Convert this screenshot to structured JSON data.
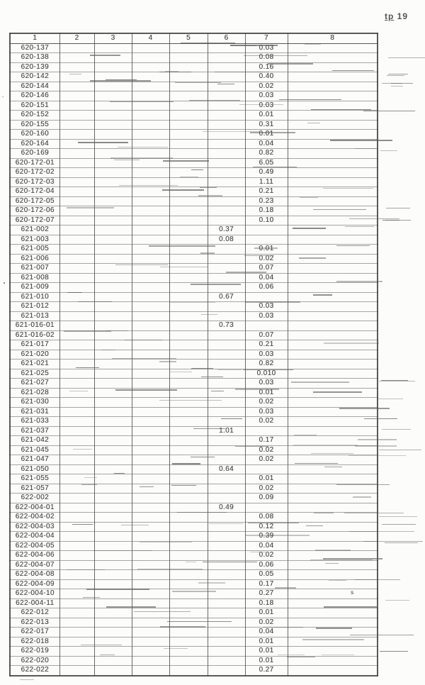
{
  "page": {
    "corner_label_prefix": "tp",
    "corner_label_number": "19"
  },
  "table": {
    "headers": [
      "1",
      "2",
      "3",
      "4",
      "5",
      "6",
      "7",
      "8"
    ],
    "stray_mark": {
      "row_id": "622-004-10",
      "col": 8,
      "text": "s"
    },
    "rows": [
      {
        "id": "620-137",
        "col": 7,
        "value": "0.03"
      },
      {
        "id": "620-138",
        "col": 7,
        "value": "0.08"
      },
      {
        "id": "620-139",
        "col": 7,
        "value": "0.16"
      },
      {
        "id": "620-142",
        "col": 7,
        "value": "0.40"
      },
      {
        "id": "620-144",
        "col": 7,
        "value": "0.02"
      },
      {
        "id": "620-146",
        "col": 7,
        "value": "0.03"
      },
      {
        "id": "620-151",
        "col": 7,
        "value": "0.03"
      },
      {
        "id": "620-152",
        "col": 7,
        "value": "0.01"
      },
      {
        "id": "620-155",
        "col": 7,
        "value": "0.31"
      },
      {
        "id": "620-160",
        "col": 7,
        "value": "0.01"
      },
      {
        "id": "620-164",
        "col": 7,
        "value": "0.04"
      },
      {
        "id": "620-169",
        "col": 7,
        "value": "0.82"
      },
      {
        "id": "620-172-01",
        "col": 7,
        "value": "6.05"
      },
      {
        "id": "620-172-02",
        "col": 7,
        "value": "0.49"
      },
      {
        "id": "620-172-03",
        "col": 7,
        "value": "1.11"
      },
      {
        "id": "620-172-04",
        "col": 7,
        "value": "0.21"
      },
      {
        "id": "620-172-05",
        "col": 7,
        "value": "0.23"
      },
      {
        "id": "620-172-06",
        "col": 7,
        "value": "0.18"
      },
      {
        "id": "620-172-07",
        "col": 7,
        "value": "0.10"
      },
      {
        "id": "621-002",
        "col": 6,
        "value": "0.37"
      },
      {
        "id": "621-003",
        "col": 6,
        "value": "0.08"
      },
      {
        "id": "621-005",
        "col": 7,
        "value": "0.01"
      },
      {
        "id": "621-006",
        "col": 7,
        "value": "0.02"
      },
      {
        "id": "621-007",
        "col": 7,
        "value": "0.07"
      },
      {
        "id": "621-008",
        "col": 7,
        "value": "0.04"
      },
      {
        "id": "621-009",
        "col": 7,
        "value": "0.06"
      },
      {
        "id": "621-010",
        "col": 6,
        "value": "0.67"
      },
      {
        "id": "621-012",
        "col": 7,
        "value": "0.03"
      },
      {
        "id": "621-013",
        "col": 7,
        "value": "0.03"
      },
      {
        "id": "621-016-01",
        "col": 6,
        "value": "0.73"
      },
      {
        "id": "621-016-02",
        "col": 7,
        "value": "0.07"
      },
      {
        "id": "621-017",
        "col": 7,
        "value": "0.21"
      },
      {
        "id": "621-020",
        "col": 7,
        "value": "0.03"
      },
      {
        "id": "621-021",
        "col": 7,
        "value": "0.82"
      },
      {
        "id": "621-025",
        "col": 7,
        "value": "0.010"
      },
      {
        "id": "621-027",
        "col": 7,
        "value": "0.03"
      },
      {
        "id": "621-028",
        "col": 7,
        "value": "0.01"
      },
      {
        "id": "621-030",
        "col": 7,
        "value": "0.02"
      },
      {
        "id": "621-031",
        "col": 7,
        "value": "0.03"
      },
      {
        "id": "621-033",
        "col": 7,
        "value": "0.02"
      },
      {
        "id": "621-037",
        "col": 6,
        "value": "1.01"
      },
      {
        "id": "621-042",
        "col": 7,
        "value": "0.17"
      },
      {
        "id": "621-045",
        "col": 7,
        "value": "0.02"
      },
      {
        "id": "621-047",
        "col": 7,
        "value": "0.02"
      },
      {
        "id": "621-050",
        "col": 6,
        "value": "0.64"
      },
      {
        "id": "621-055",
        "col": 7,
        "value": "0.01"
      },
      {
        "id": "621-057",
        "col": 7,
        "value": "0.02"
      },
      {
        "id": "622-002",
        "col": 7,
        "value": "0.09"
      },
      {
        "id": "622-004-01",
        "col": 6,
        "value": "0.49"
      },
      {
        "id": "622-004-02",
        "col": 7,
        "value": "0.08"
      },
      {
        "id": "622-004-03",
        "col": 7,
        "value": "0.12"
      },
      {
        "id": "622-004-04",
        "col": 7,
        "value": "0.39"
      },
      {
        "id": "622-004-05",
        "col": 7,
        "value": "0.04"
      },
      {
        "id": "622-004-06",
        "col": 7,
        "value": "0.02"
      },
      {
        "id": "622-004-07",
        "col": 7,
        "value": "0.06"
      },
      {
        "id": "622-004-08",
        "col": 7,
        "value": "0.05"
      },
      {
        "id": "622-004-09",
        "col": 7,
        "value": "0.17"
      },
      {
        "id": "622-004-10",
        "col": 7,
        "value": "0.27"
      },
      {
        "id": "622-004-11",
        "col": 7,
        "value": "0.18"
      },
      {
        "id": "622-012",
        "col": 7,
        "value": "0.01"
      },
      {
        "id": "622-013",
        "col": 7,
        "value": "0.02"
      },
      {
        "id": "622-017",
        "col": 7,
        "value": "0.04"
      },
      {
        "id": "622-018",
        "col": 7,
        "value": "0.01"
      },
      {
        "id": "622-019",
        "col": 7,
        "value": "0.01"
      },
      {
        "id": "622-020",
        "col": 7,
        "value": "0.01"
      },
      {
        "id": "622-022",
        "col": 7,
        "value": "0.27"
      }
    ]
  }
}
